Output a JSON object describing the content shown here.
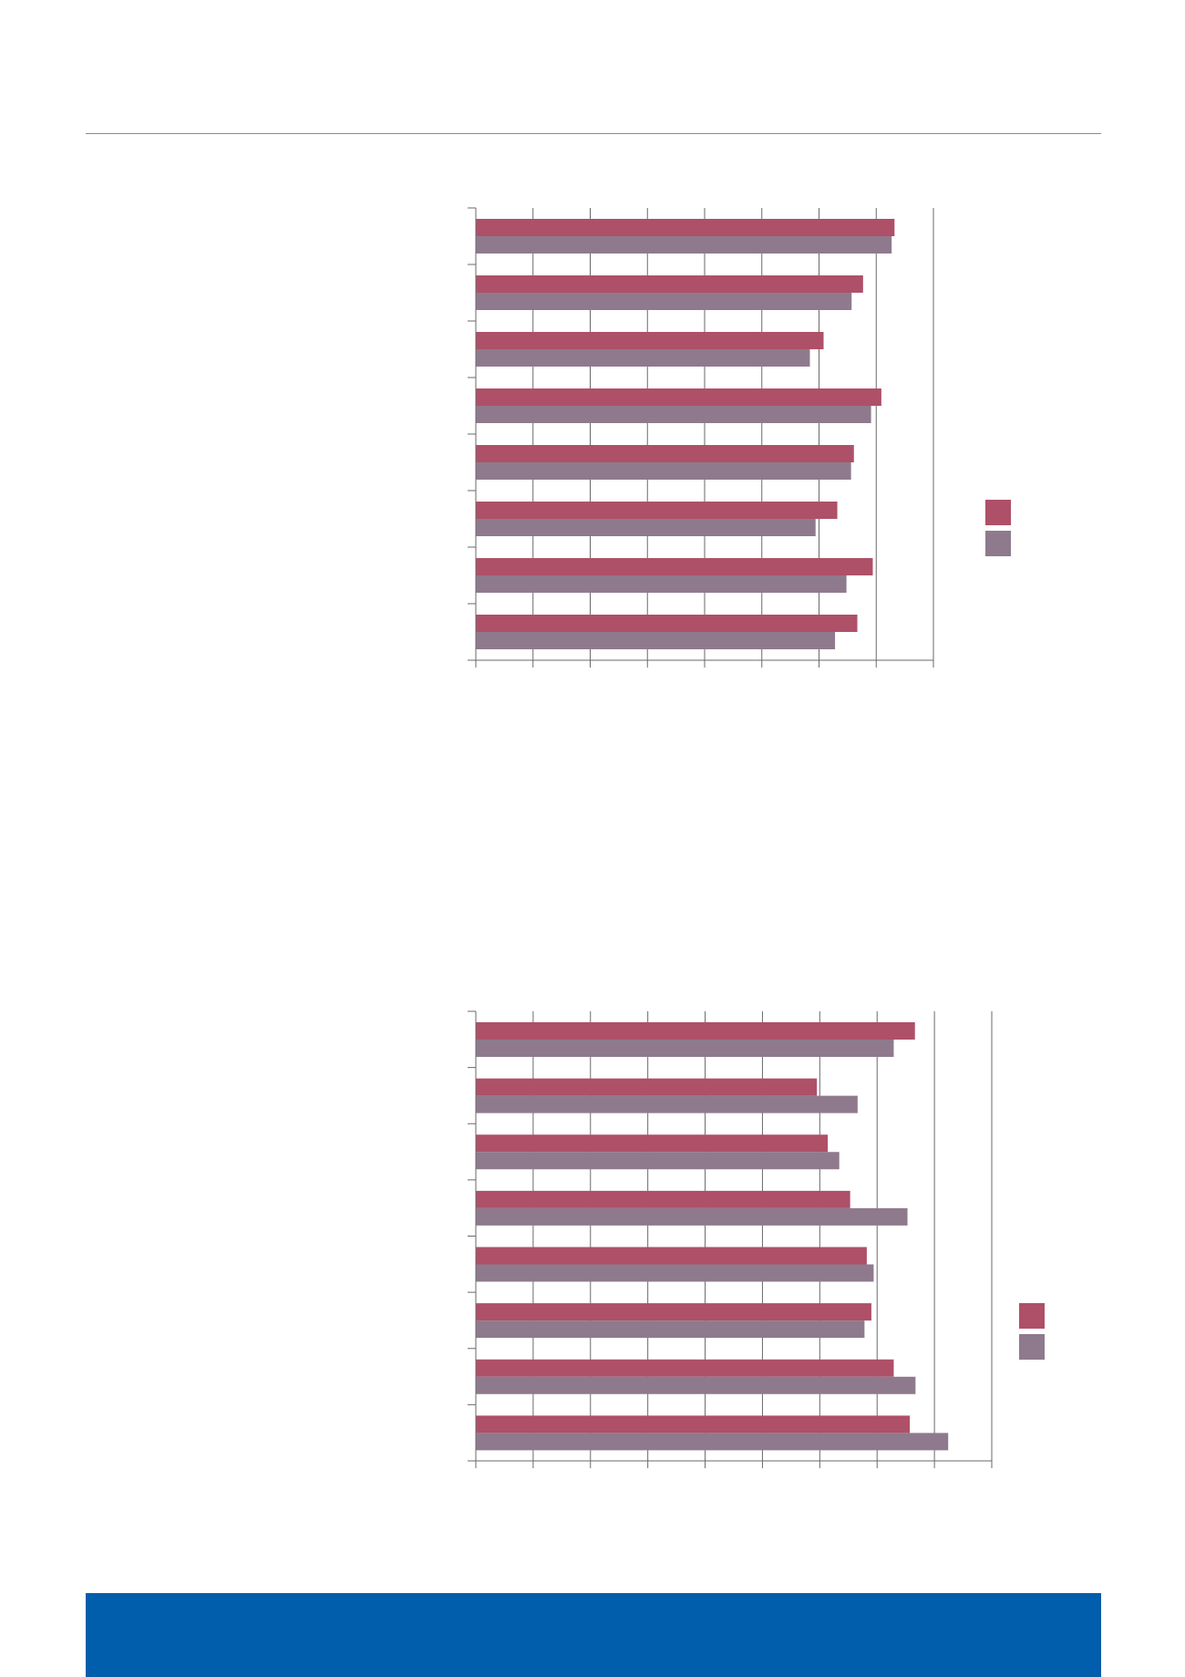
{
  "colors": {
    "series1": "#ae5068",
    "series2": "#8f7a8d",
    "axis": "#6a6a6a",
    "gridline": "#6a6a6a",
    "rule": "#8a8a8a",
    "footer": "#005eac"
  },
  "chart_data": [
    {
      "type": "bar",
      "orientation": "horizontal",
      "grid": true,
      "legend_placement": "right",
      "xlim": [
        0,
        8
      ],
      "categories": [
        "",
        "",
        "",
        "",
        "",
        "",
        "",
        ""
      ],
      "series": [
        {
          "values": [
            7.32,
            6.77,
            6.08,
            7.09,
            6.61,
            6.32,
            6.94,
            6.67
          ]
        },
        {
          "values": [
            7.27,
            6.57,
            5.84,
            6.91,
            6.56,
            5.94,
            6.48,
            6.28
          ]
        }
      ]
    },
    {
      "type": "bar",
      "orientation": "horizontal",
      "grid": true,
      "legend_placement": "right",
      "xlim": [
        0,
        9
      ],
      "categories": [
        "",
        "",
        "",
        "",
        "",
        "",
        "",
        ""
      ],
      "series": [
        {
          "values": [
            7.66,
            5.95,
            6.14,
            6.53,
            6.82,
            6.9,
            7.29,
            7.57
          ]
        },
        {
          "values": [
            7.29,
            6.66,
            6.34,
            7.53,
            6.94,
            6.78,
            7.67,
            8.24
          ]
        }
      ]
    }
  ]
}
